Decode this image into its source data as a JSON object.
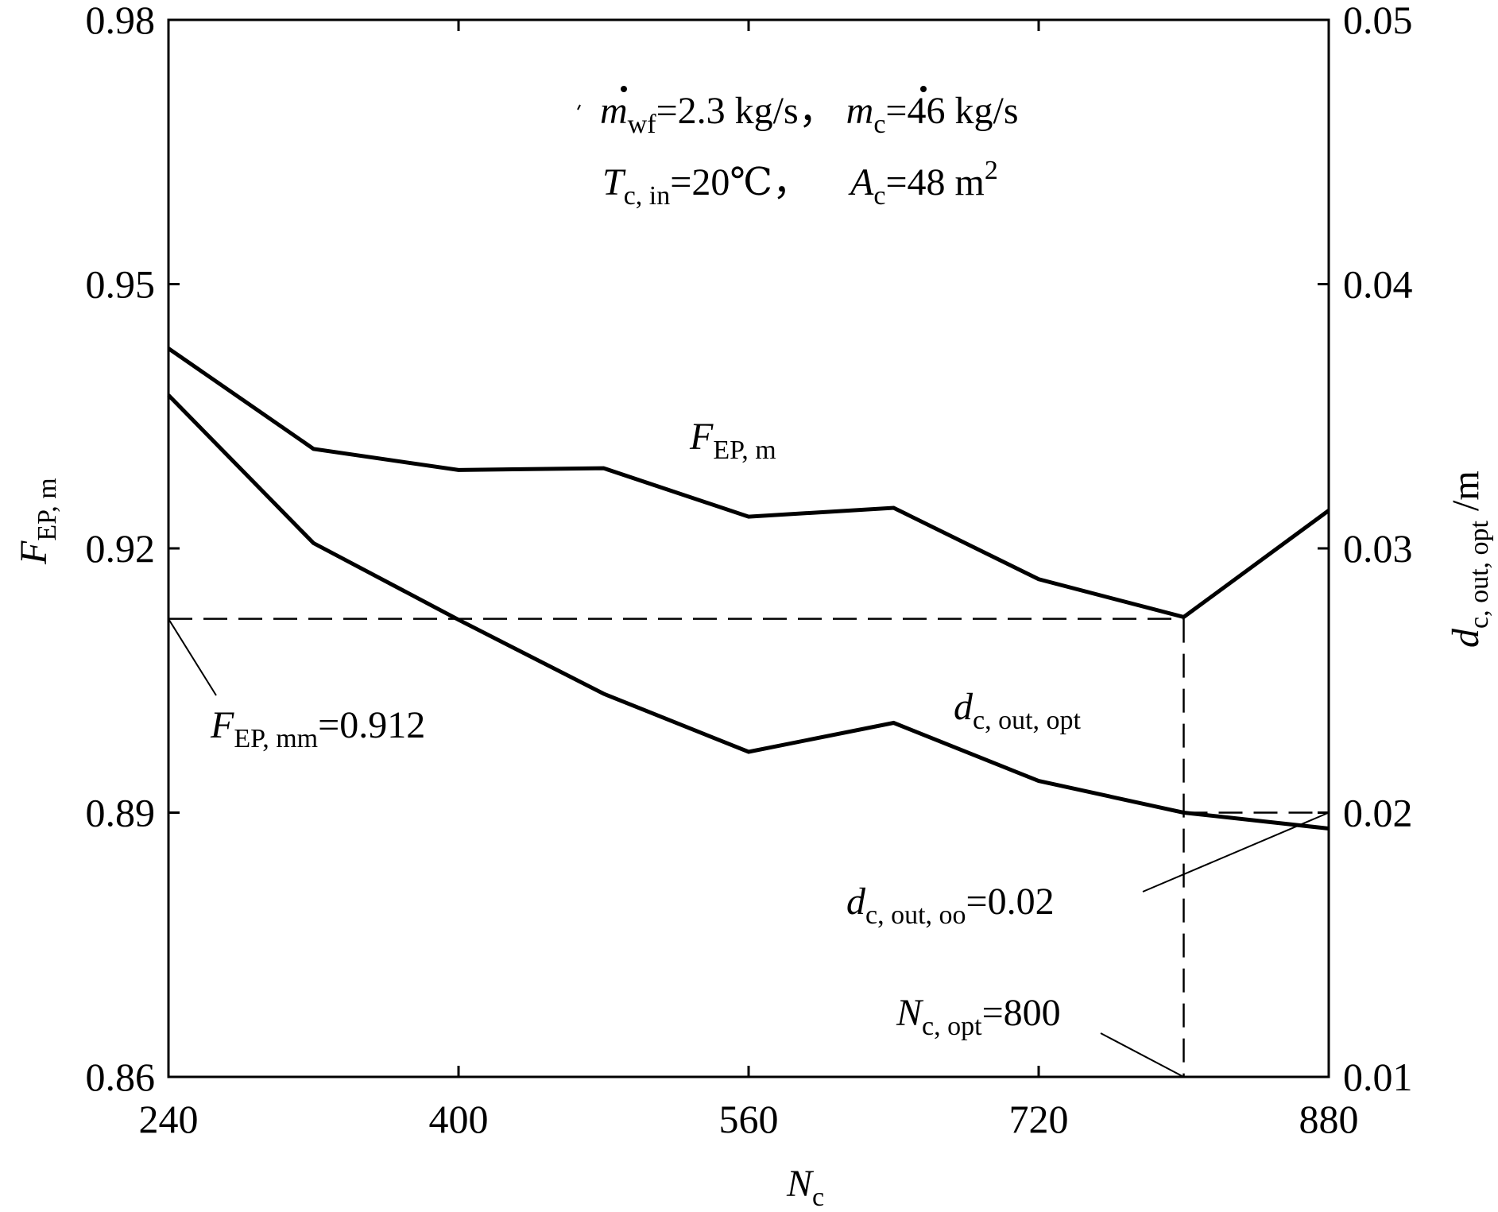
{
  "chart_data": {
    "type": "line",
    "x_axis": {
      "label": "N",
      "label_sub": "c",
      "min": 240,
      "max": 880,
      "ticks": [
        "240",
        "400",
        "560",
        "720",
        "880"
      ]
    },
    "y_left": {
      "label": "F",
      "label_sub": "EP, m",
      "min": 0.86,
      "max": 0.98,
      "ticks": [
        "0.86",
        "0.89",
        "0.92",
        "0.95",
        "0.98"
      ]
    },
    "y_right": {
      "label": "d",
      "label_sub": "c, out, opt",
      "label_suffix": " /m",
      "min": 0.01,
      "max": 0.05,
      "ticks": [
        "0.01",
        "0.02",
        "0.03",
        "0.04",
        "0.05"
      ]
    },
    "series": [
      {
        "name": "F",
        "name_sub": "EP, m",
        "axis": "left",
        "x": [
          240,
          320,
          400,
          480,
          560,
          640,
          720,
          800,
          880
        ],
        "y": [
          0.9427,
          0.9313,
          0.9289,
          0.9291,
          0.9236,
          0.9246,
          0.9165,
          0.9122,
          0.9243
        ]
      },
      {
        "name": "d",
        "name_sub": "c, out, opt",
        "axis": "right",
        "x": [
          240,
          320,
          400,
          480,
          560,
          640,
          720,
          800,
          880
        ],
        "y": [
          0.0358,
          0.0302,
          0.0273,
          0.0245,
          0.0223,
          0.0234,
          0.0212,
          0.02,
          0.0194
        ]
      }
    ],
    "reference_lines": {
      "f_ep_mm": 0.912,
      "d_c_out_oo": 0.02,
      "n_c_opt": 800
    },
    "annotations": {
      "conditions_line1": {
        "m1": "m",
        "m1_sub": "wf",
        "m1_text": "=2.3 kg/s，",
        "m2": "m",
        "m2_sub": "c",
        "m2_text": "=46 kg/s"
      },
      "conditions_line2": {
        "t": "T",
        "t_sub": "c, in",
        "t_text": "=20℃，",
        "a": "A",
        "a_sub": "c",
        "a_text": "=48 m",
        "a_sup": "2"
      },
      "f_ep_mm_label": {
        "main": "F",
        "sub": "EP, mm",
        "text": "=0.912"
      },
      "d_c_out_oo_label": {
        "main": "d",
        "sub": "c, out, oo",
        "text": "=0.02"
      },
      "n_c_opt_label": {
        "main": "N",
        "sub": "c, opt",
        "text": "=800"
      }
    }
  }
}
